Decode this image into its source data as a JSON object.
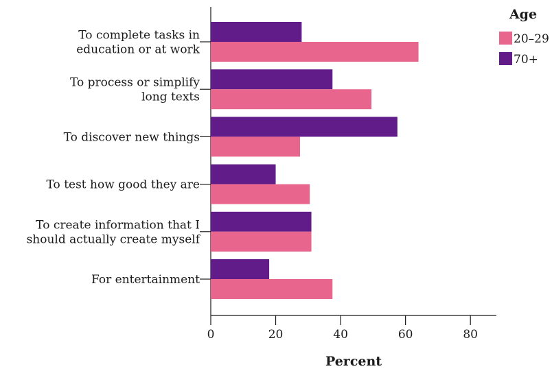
{
  "chart_data": {
    "type": "bar",
    "orientation": "horizontal",
    "categories": [
      [
        "To complete tasks in",
        "education or at work"
      ],
      [
        "To process or simplify",
        "long texts"
      ],
      [
        "To discover new things"
      ],
      [
        "To test how good they are"
      ],
      [
        "To create information that I",
        "should actually create myself"
      ],
      [
        "For entertainment"
      ]
    ],
    "series": [
      {
        "name": "70+",
        "color": "#621c8a",
        "values": [
          28,
          37.5,
          57.5,
          20,
          31,
          18
        ]
      },
      {
        "name": "20–29",
        "color": "#e8658d",
        "values": [
          64,
          49.5,
          27.5,
          30.5,
          31,
          37.5
        ]
      }
    ],
    "xlabel": "Percent",
    "ylabel": "",
    "xlim": [
      0,
      88
    ],
    "xticks": [
      0,
      20,
      40,
      60,
      80
    ],
    "grid": false,
    "legend": {
      "title": "Age",
      "position": "top-right",
      "entries": [
        {
          "label": "20–29",
          "color": "#e8658d"
        },
        {
          "label": "70+",
          "color": "#621c8a"
        }
      ]
    }
  }
}
